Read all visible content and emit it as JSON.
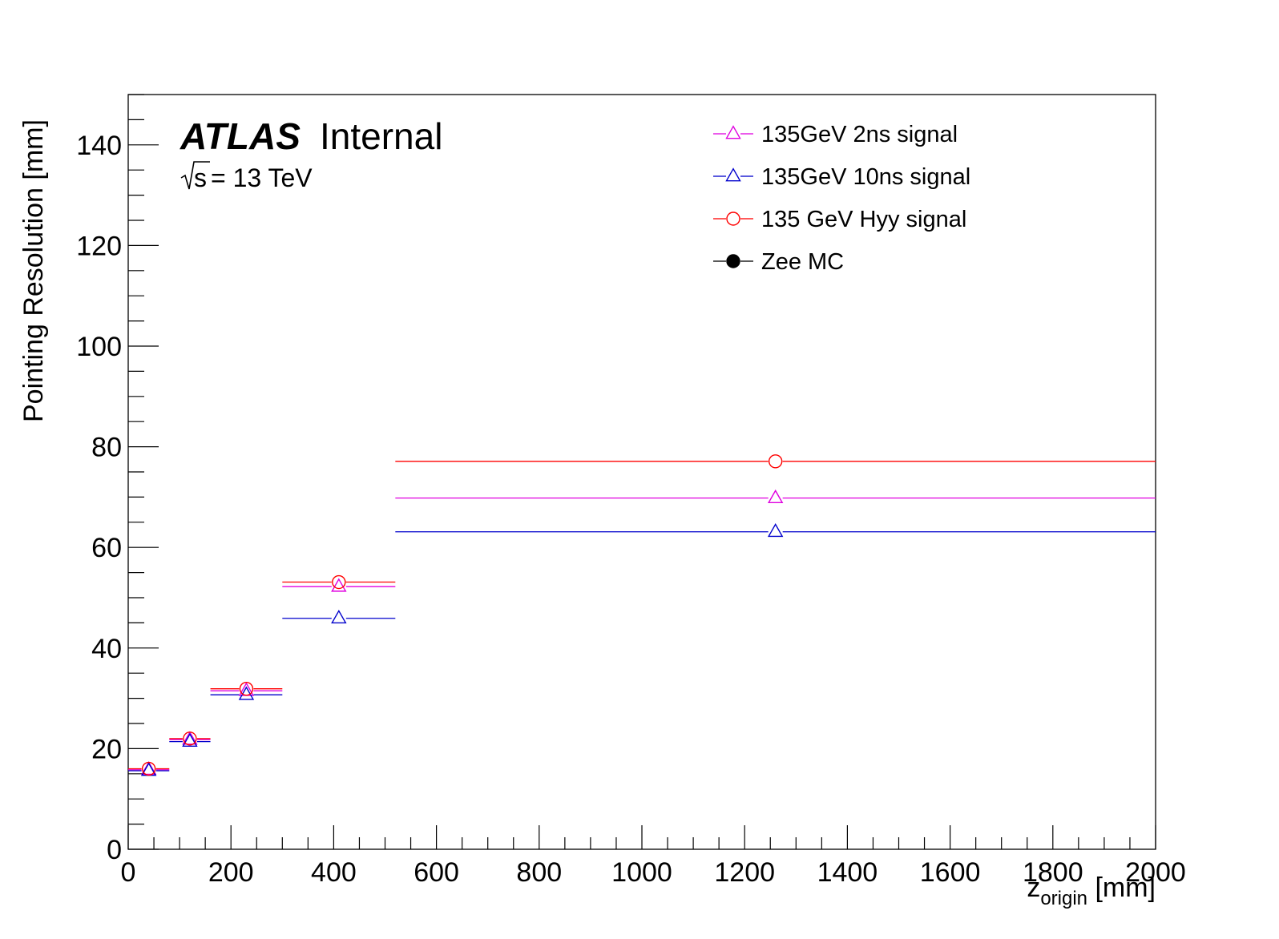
{
  "chart_data": {
    "type": "scatter",
    "xlabel": "z",
    "xlabel_subscript": "origin",
    "xlabel_unit": " [mm]",
    "ylabel": "Pointing Resolution [mm]",
    "xlim": [
      0,
      2000
    ],
    "ylim": [
      0,
      150
    ],
    "x_ticks": [
      0,
      200,
      400,
      600,
      800,
      1000,
      1200,
      1400,
      1600,
      1800,
      2000
    ],
    "y_ticks": [
      0,
      20,
      40,
      60,
      80,
      100,
      120,
      140
    ],
    "grid": false,
    "legend_position": "top-right",
    "annotation": {
      "experiment": "ATLAS",
      "status": "Internal",
      "energy_sqrt": "s",
      "energy_value": " = 13 TeV"
    },
    "bins": [
      {
        "low": 0,
        "high": 80,
        "center": 40
      },
      {
        "low": 80,
        "high": 160,
        "center": 120
      },
      {
        "low": 160,
        "high": 300,
        "center": 230
      },
      {
        "low": 300,
        "high": 520,
        "center": 410
      },
      {
        "low": 520,
        "high": 2000,
        "center": 1260
      }
    ],
    "series": [
      {
        "name": "135GeV 2ns signal",
        "color": "#e000e0",
        "marker": "open-triangle",
        "values": [
          15.8,
          21.8,
          31.5,
          52.2,
          69.8
        ]
      },
      {
        "name": "135GeV 10ns signal",
        "color": "#0000cc",
        "marker": "open-triangle",
        "values": [
          15.6,
          21.4,
          30.7,
          45.9,
          63.1
        ]
      },
      {
        "name": "135 GeV Hyy signal",
        "color": "#ff0000",
        "marker": "open-circle",
        "values": [
          16.0,
          22.0,
          31.9,
          53.1,
          77.1
        ]
      },
      {
        "name": "Zee MC",
        "color": "#000000",
        "marker": "filled-circle",
        "values": []
      }
    ]
  }
}
